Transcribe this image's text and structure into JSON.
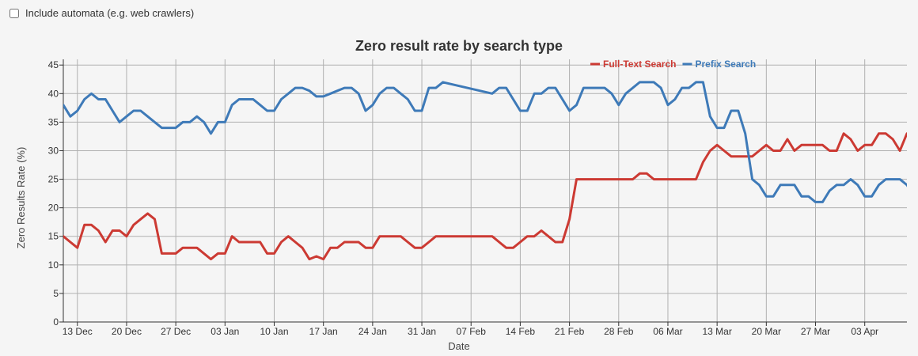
{
  "controls": {
    "automata_label": "Include automata (e.g. web crawlers)",
    "automata_checked": false
  },
  "colors": {
    "full_text": "#cc3a33",
    "prefix": "#3e7ab8",
    "grid": "#b0b0b0"
  },
  "chart_data": {
    "type": "line",
    "title": "Zero result rate by search type",
    "xlabel": "Date",
    "ylabel": "Zero Results Rate (%)",
    "ylim": [
      0,
      46
    ],
    "yticks": [
      0,
      5,
      10,
      15,
      20,
      25,
      30,
      35,
      40,
      45
    ],
    "xlim": [
      "2015-12-11",
      "2016-04-09"
    ],
    "xticks": [
      {
        "date": "2015-12-13",
        "label": "13 Dec"
      },
      {
        "date": "2015-12-20",
        "label": "20 Dec"
      },
      {
        "date": "2015-12-27",
        "label": "27 Dec"
      },
      {
        "date": "2016-01-03",
        "label": "03 Jan"
      },
      {
        "date": "2016-01-10",
        "label": "10 Jan"
      },
      {
        "date": "2016-01-17",
        "label": "17 Jan"
      },
      {
        "date": "2016-01-24",
        "label": "24 Jan"
      },
      {
        "date": "2016-01-31",
        "label": "31 Jan"
      },
      {
        "date": "2016-02-07",
        "label": "07 Feb"
      },
      {
        "date": "2016-02-14",
        "label": "14 Feb"
      },
      {
        "date": "2016-02-21",
        "label": "21 Feb"
      },
      {
        "date": "2016-02-28",
        "label": "28 Feb"
      },
      {
        "date": "2016-03-06",
        "label": "06 Mar"
      },
      {
        "date": "2016-03-13",
        "label": "13 Mar"
      },
      {
        "date": "2016-03-20",
        "label": "20 Mar"
      },
      {
        "date": "2016-03-27",
        "label": "27 Mar"
      },
      {
        "date": "2016-04-03",
        "label": "03 Apr"
      }
    ],
    "grid": true,
    "legend_position": "top-right",
    "series": [
      {
        "name": "Full-Text Search",
        "color": "#cc3a33",
        "points": [
          [
            "2015-12-11",
            15
          ],
          [
            "2015-12-12",
            14
          ],
          [
            "2015-12-13",
            13
          ],
          [
            "2015-12-14",
            17
          ],
          [
            "2015-12-15",
            17
          ],
          [
            "2015-12-16",
            16
          ],
          [
            "2015-12-17",
            14
          ],
          [
            "2015-12-18",
            16
          ],
          [
            "2015-12-19",
            16
          ],
          [
            "2015-12-20",
            15
          ],
          [
            "2015-12-21",
            17
          ],
          [
            "2015-12-22",
            18
          ],
          [
            "2015-12-23",
            19
          ],
          [
            "2015-12-24",
            18
          ],
          [
            "2015-12-25",
            12
          ],
          [
            "2015-12-26",
            12
          ],
          [
            "2015-12-27",
            12
          ],
          [
            "2015-12-28",
            13
          ],
          [
            "2015-12-29",
            13
          ],
          [
            "2015-12-30",
            13
          ],
          [
            "2015-12-31",
            12
          ],
          [
            "2016-01-01",
            11
          ],
          [
            "2016-01-02",
            12
          ],
          [
            "2016-01-03",
            12
          ],
          [
            "2016-01-04",
            15
          ],
          [
            "2016-01-05",
            14
          ],
          [
            "2016-01-06",
            14
          ],
          [
            "2016-01-07",
            14
          ],
          [
            "2016-01-08",
            14
          ],
          [
            "2016-01-09",
            12
          ],
          [
            "2016-01-10",
            12
          ],
          [
            "2016-01-11",
            14
          ],
          [
            "2016-01-12",
            15
          ],
          [
            "2016-01-13",
            14
          ],
          [
            "2016-01-14",
            13
          ],
          [
            "2016-01-15",
            11
          ],
          [
            "2016-01-16",
            11.5
          ],
          [
            "2016-01-17",
            11
          ],
          [
            "2016-01-18",
            13
          ],
          [
            "2016-01-19",
            13
          ],
          [
            "2016-01-20",
            14
          ],
          [
            "2016-01-21",
            14
          ],
          [
            "2016-01-22",
            14
          ],
          [
            "2016-01-23",
            13
          ],
          [
            "2016-01-24",
            13
          ],
          [
            "2016-01-25",
            15
          ],
          [
            "2016-01-26",
            15
          ],
          [
            "2016-01-27",
            15
          ],
          [
            "2016-01-28",
            15
          ],
          [
            "2016-01-29",
            14
          ],
          [
            "2016-01-30",
            13
          ],
          [
            "2016-01-31",
            13
          ],
          [
            "2016-02-01",
            14
          ],
          [
            "2016-02-02",
            15
          ],
          [
            "2016-02-03",
            15
          ],
          [
            "2016-02-04",
            15
          ],
          [
            "2016-02-05",
            15
          ],
          [
            "2016-02-06",
            15
          ],
          [
            "2016-02-07",
            15
          ],
          [
            "2016-02-08",
            15
          ],
          [
            "2016-02-09",
            15
          ],
          [
            "2016-02-10",
            15
          ],
          [
            "2016-02-11",
            14
          ],
          [
            "2016-02-12",
            13
          ],
          [
            "2016-02-13",
            13
          ],
          [
            "2016-02-14",
            14
          ],
          [
            "2016-02-15",
            15
          ],
          [
            "2016-02-16",
            15
          ],
          [
            "2016-02-17",
            16
          ],
          [
            "2016-02-18",
            15
          ],
          [
            "2016-02-19",
            14
          ],
          [
            "2016-02-20",
            14
          ],
          [
            "2016-02-21",
            18
          ],
          [
            "2016-02-22",
            25
          ],
          [
            "2016-02-23",
            25
          ],
          [
            "2016-02-24",
            25
          ],
          [
            "2016-02-25",
            25
          ],
          [
            "2016-02-26",
            25
          ],
          [
            "2016-02-27",
            25
          ],
          [
            "2016-02-28",
            25
          ],
          [
            "2016-02-29",
            25
          ],
          [
            "2016-03-01",
            25
          ],
          [
            "2016-03-02",
            26
          ],
          [
            "2016-03-03",
            26
          ],
          [
            "2016-03-04",
            25
          ],
          [
            "2016-03-05",
            25
          ],
          [
            "2016-03-06",
            25
          ],
          [
            "2016-03-07",
            25
          ],
          [
            "2016-03-08",
            25
          ],
          [
            "2016-03-09",
            25
          ],
          [
            "2016-03-10",
            25
          ],
          [
            "2016-03-11",
            28
          ],
          [
            "2016-03-12",
            30
          ],
          [
            "2016-03-13",
            31
          ],
          [
            "2016-03-14",
            30
          ],
          [
            "2016-03-15",
            29
          ],
          [
            "2016-03-16",
            29
          ],
          [
            "2016-03-17",
            29
          ],
          [
            "2016-03-18",
            29
          ],
          [
            "2016-03-19",
            30
          ],
          [
            "2016-03-20",
            31
          ],
          [
            "2016-03-21",
            30
          ],
          [
            "2016-03-22",
            30
          ],
          [
            "2016-03-23",
            32
          ],
          [
            "2016-03-24",
            30
          ],
          [
            "2016-03-25",
            31
          ],
          [
            "2016-03-26",
            31
          ],
          [
            "2016-03-27",
            31
          ],
          [
            "2016-03-28",
            31
          ],
          [
            "2016-03-29",
            30
          ],
          [
            "2016-03-30",
            30
          ],
          [
            "2016-03-31",
            33
          ],
          [
            "2016-04-01",
            32
          ],
          [
            "2016-04-02",
            30
          ],
          [
            "2016-04-03",
            31
          ],
          [
            "2016-04-04",
            31
          ],
          [
            "2016-04-05",
            33
          ],
          [
            "2016-04-06",
            33
          ],
          [
            "2016-04-07",
            32
          ],
          [
            "2016-04-08",
            30
          ],
          [
            "2016-04-09",
            33
          ]
        ]
      },
      {
        "name": "Prefix Search",
        "color": "#3e7ab8",
        "points": [
          [
            "2015-12-11",
            38
          ],
          [
            "2015-12-12",
            36
          ],
          [
            "2015-12-13",
            37
          ],
          [
            "2015-12-14",
            39
          ],
          [
            "2015-12-15",
            40
          ],
          [
            "2015-12-16",
            39
          ],
          [
            "2015-12-17",
            39
          ],
          [
            "2015-12-18",
            37
          ],
          [
            "2015-12-19",
            35
          ],
          [
            "2015-12-20",
            36
          ],
          [
            "2015-12-21",
            37
          ],
          [
            "2015-12-22",
            37
          ],
          [
            "2015-12-23",
            36
          ],
          [
            "2015-12-24",
            35
          ],
          [
            "2015-12-25",
            34
          ],
          [
            "2015-12-26",
            34
          ],
          [
            "2015-12-27",
            34
          ],
          [
            "2015-12-28",
            35
          ],
          [
            "2015-12-29",
            35
          ],
          [
            "2015-12-30",
            36
          ],
          [
            "2015-12-31",
            35
          ],
          [
            "2016-01-01",
            33
          ],
          [
            "2016-01-02",
            35
          ],
          [
            "2016-01-03",
            35
          ],
          [
            "2016-01-04",
            38
          ],
          [
            "2016-01-05",
            39
          ],
          [
            "2016-01-06",
            39
          ],
          [
            "2016-01-07",
            39
          ],
          [
            "2016-01-08",
            38
          ],
          [
            "2016-01-09",
            37
          ],
          [
            "2016-01-10",
            37
          ],
          [
            "2016-01-11",
            39
          ],
          [
            "2016-01-12",
            40
          ],
          [
            "2016-01-13",
            41
          ],
          [
            "2016-01-14",
            41
          ],
          [
            "2016-01-15",
            40.5
          ],
          [
            "2016-01-16",
            39.5
          ],
          [
            "2016-01-17",
            39.5
          ],
          [
            "2016-01-18",
            40
          ],
          [
            "2016-01-19",
            40.5
          ],
          [
            "2016-01-20",
            41
          ],
          [
            "2016-01-21",
            41
          ],
          [
            "2016-01-22",
            40
          ],
          [
            "2016-01-23",
            37
          ],
          [
            "2016-01-24",
            38
          ],
          [
            "2016-01-25",
            40
          ],
          [
            "2016-01-26",
            41
          ],
          [
            "2016-01-27",
            41
          ],
          [
            "2016-01-28",
            40
          ],
          [
            "2016-01-29",
            39
          ],
          [
            "2016-01-30",
            37
          ],
          [
            "2016-01-31",
            37
          ],
          [
            "2016-02-01",
            41
          ],
          [
            "2016-02-02",
            41
          ],
          [
            "2016-02-03",
            42
          ],
          [
            "2016-02-10",
            40
          ],
          [
            "2016-02-11",
            41
          ],
          [
            "2016-02-12",
            41
          ],
          [
            "2016-02-13",
            39
          ],
          [
            "2016-02-14",
            37
          ],
          [
            "2016-02-15",
            37
          ],
          [
            "2016-02-16",
            40
          ],
          [
            "2016-02-17",
            40
          ],
          [
            "2016-02-18",
            41
          ],
          [
            "2016-02-19",
            41
          ],
          [
            "2016-02-20",
            39
          ],
          [
            "2016-02-21",
            37
          ],
          [
            "2016-02-22",
            38
          ],
          [
            "2016-02-23",
            41
          ],
          [
            "2016-02-24",
            41
          ],
          [
            "2016-02-25",
            41
          ],
          [
            "2016-02-26",
            41
          ],
          [
            "2016-02-27",
            40
          ],
          [
            "2016-02-28",
            38
          ],
          [
            "2016-02-29",
            40
          ],
          [
            "2016-03-01",
            41
          ],
          [
            "2016-03-02",
            42
          ],
          [
            "2016-03-03",
            42
          ],
          [
            "2016-03-04",
            42
          ],
          [
            "2016-03-05",
            41
          ],
          [
            "2016-03-06",
            38
          ],
          [
            "2016-03-07",
            39
          ],
          [
            "2016-03-08",
            41
          ],
          [
            "2016-03-09",
            41
          ],
          [
            "2016-03-10",
            42
          ],
          [
            "2016-03-11",
            42
          ],
          [
            "2016-03-12",
            36
          ],
          [
            "2016-03-13",
            34
          ],
          [
            "2016-03-14",
            34
          ],
          [
            "2016-03-15",
            37
          ],
          [
            "2016-03-16",
            37
          ],
          [
            "2016-03-17",
            33
          ],
          [
            "2016-03-18",
            25
          ],
          [
            "2016-03-19",
            24
          ],
          [
            "2016-03-20",
            22
          ],
          [
            "2016-03-21",
            22
          ],
          [
            "2016-03-22",
            24
          ],
          [
            "2016-03-23",
            24
          ],
          [
            "2016-03-24",
            24
          ],
          [
            "2016-03-25",
            22
          ],
          [
            "2016-03-26",
            22
          ],
          [
            "2016-03-27",
            21
          ],
          [
            "2016-03-28",
            21
          ],
          [
            "2016-03-29",
            23
          ],
          [
            "2016-03-30",
            24
          ],
          [
            "2016-03-31",
            24
          ],
          [
            "2016-04-01",
            25
          ],
          [
            "2016-04-02",
            24
          ],
          [
            "2016-04-03",
            22
          ],
          [
            "2016-04-04",
            22
          ],
          [
            "2016-04-05",
            24
          ],
          [
            "2016-04-06",
            25
          ],
          [
            "2016-04-07",
            25
          ],
          [
            "2016-04-08",
            25
          ],
          [
            "2016-04-09",
            24
          ],
          [
            "2016-04-10",
            22
          ]
        ]
      }
    ]
  }
}
